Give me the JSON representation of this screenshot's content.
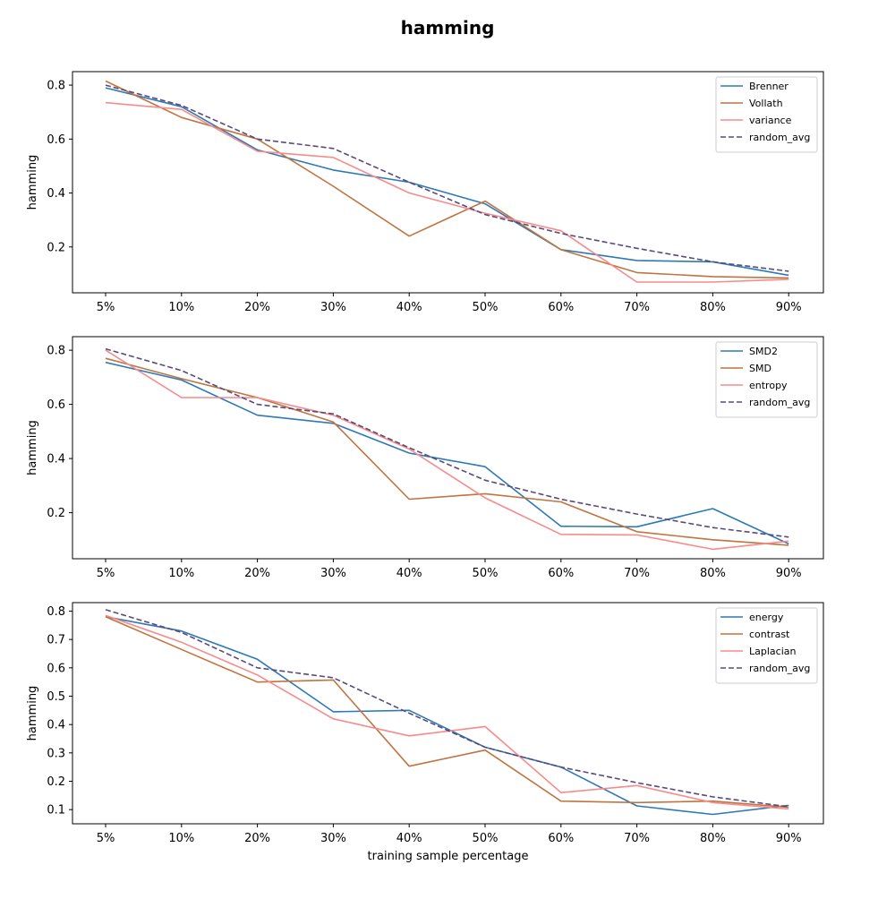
{
  "figure": {
    "title": "hamming"
  },
  "colors": {
    "series_1": "#2e79b5",
    "series_2": "#c07440",
    "series_3": "#f78a8a",
    "random_avg": "#5a4a7a"
  },
  "chart_data": [
    {
      "type": "line",
      "title": "",
      "xlabel": "",
      "ylabel": "hamming",
      "categories": [
        "5%",
        "10%",
        "20%",
        "30%",
        "40%",
        "50%",
        "60%",
        "70%",
        "80%",
        "90%"
      ],
      "ylim": [
        0.03,
        0.85
      ],
      "yticks": [
        0.2,
        0.4,
        0.6,
        0.8
      ],
      "ytick_labels": [
        "0.2",
        "0.4",
        "0.6",
        "0.8"
      ],
      "legend_position": "top-right",
      "series": [
        {
          "name": "Brenner",
          "values": [
            0.79,
            0.72,
            0.56,
            0.485,
            0.44,
            0.36,
            0.19,
            0.15,
            0.145,
            0.095
          ],
          "color": "#2e79b5",
          "style": "solid"
        },
        {
          "name": "Vollath",
          "values": [
            0.815,
            0.68,
            0.6,
            0.425,
            0.24,
            0.37,
            0.19,
            0.105,
            0.09,
            0.085
          ],
          "color": "#c07440",
          "style": "solid"
        },
        {
          "name": "variance",
          "values": [
            0.735,
            0.71,
            0.555,
            0.532,
            0.4,
            0.325,
            0.26,
            0.07,
            0.07,
            0.08
          ],
          "color": "#f78a8a",
          "style": "solid"
        },
        {
          "name": "random_avg",
          "values": [
            0.8,
            0.725,
            0.6,
            0.565,
            0.44,
            0.32,
            0.25,
            0.195,
            0.145,
            0.11
          ],
          "color": "#5a4a7a",
          "style": "dashed"
        }
      ]
    },
    {
      "type": "line",
      "title": "",
      "xlabel": "",
      "ylabel": "hamming",
      "categories": [
        "5%",
        "10%",
        "20%",
        "30%",
        "40%",
        "50%",
        "60%",
        "70%",
        "80%",
        "90%"
      ],
      "ylim": [
        0.03,
        0.85
      ],
      "yticks": [
        0.2,
        0.4,
        0.6,
        0.8
      ],
      "ytick_labels": [
        "0.2",
        "0.4",
        "0.6",
        "0.8"
      ],
      "legend_position": "top-right",
      "series": [
        {
          "name": "SMD2",
          "values": [
            0.755,
            0.69,
            0.56,
            0.53,
            0.42,
            0.37,
            0.15,
            0.148,
            0.215,
            0.085
          ],
          "color": "#2e79b5",
          "style": "solid"
        },
        {
          "name": "SMD",
          "values": [
            0.77,
            0.695,
            0.625,
            0.535,
            0.25,
            0.27,
            0.24,
            0.13,
            0.1,
            0.08
          ],
          "color": "#c07440",
          "style": "solid"
        },
        {
          "name": "entropy",
          "values": [
            0.8,
            0.625,
            0.625,
            0.56,
            0.435,
            0.255,
            0.12,
            0.118,
            0.065,
            0.095
          ],
          "color": "#f78a8a",
          "style": "solid"
        },
        {
          "name": "random_avg",
          "values": [
            0.805,
            0.725,
            0.6,
            0.565,
            0.44,
            0.32,
            0.25,
            0.195,
            0.145,
            0.11
          ],
          "color": "#5a4a7a",
          "style": "dashed"
        }
      ]
    },
    {
      "type": "line",
      "title": "",
      "xlabel": "training sample percentage",
      "ylabel": "hamming",
      "categories": [
        "5%",
        "10%",
        "20%",
        "30%",
        "40%",
        "50%",
        "60%",
        "70%",
        "80%",
        "90%"
      ],
      "ylim": [
        0.05,
        0.83
      ],
      "yticks": [
        0.1,
        0.2,
        0.3,
        0.4,
        0.5,
        0.6,
        0.7,
        0.8
      ],
      "ytick_labels": [
        "0.1",
        "0.2",
        "0.3",
        "0.4",
        "0.5",
        "0.6",
        "0.7",
        "0.8"
      ],
      "legend_position": "top-right",
      "series": [
        {
          "name": "energy",
          "values": [
            0.78,
            0.73,
            0.63,
            0.445,
            0.45,
            0.32,
            0.25,
            0.113,
            0.083,
            0.115
          ],
          "color": "#2e79b5",
          "style": "solid"
        },
        {
          "name": "contrast",
          "values": [
            0.78,
            0.665,
            0.55,
            0.557,
            0.253,
            0.31,
            0.13,
            0.125,
            0.13,
            0.108
          ],
          "color": "#c07440",
          "style": "solid"
        },
        {
          "name": "Laplacian",
          "values": [
            0.785,
            0.69,
            0.575,
            0.42,
            0.36,
            0.393,
            0.16,
            0.185,
            0.125,
            0.102
          ],
          "color": "#f78a8a",
          "style": "solid"
        },
        {
          "name": "random_avg",
          "values": [
            0.805,
            0.725,
            0.6,
            0.565,
            0.44,
            0.32,
            0.25,
            0.195,
            0.145,
            0.11
          ],
          "color": "#5a4a7a",
          "style": "dashed"
        }
      ]
    }
  ]
}
